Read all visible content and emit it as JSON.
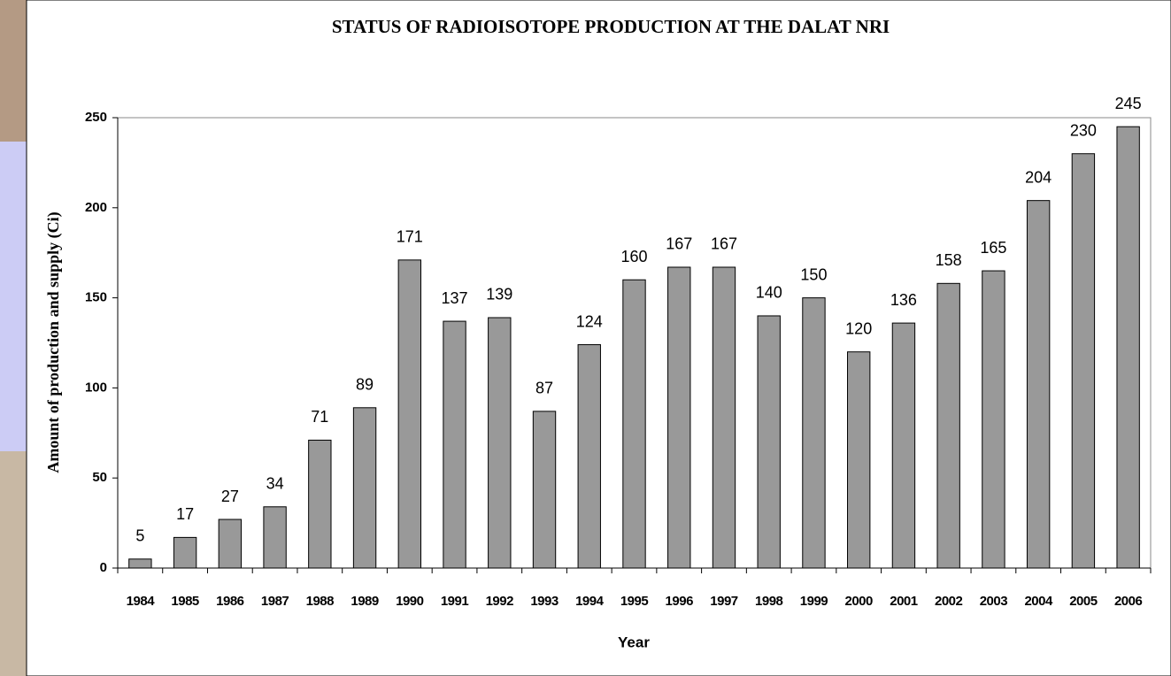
{
  "chart_data": {
    "type": "bar",
    "title": "STATUS OF RADIOISOTOPE PRODUCTION AT THE DALAT NRI",
    "x_label": "Year",
    "y_label": "Amount of production and supply (Ci)",
    "categories": [
      "1984",
      "1985",
      "1986",
      "1987",
      "1988",
      "1989",
      "1990",
      "1991",
      "1992",
      "1993",
      "1994",
      "1995",
      "1996",
      "1997",
      "1998",
      "1999",
      "2000",
      "2001",
      "2002",
      "2003",
      "2004",
      "2005",
      "2006"
    ],
    "values": [
      5,
      17,
      27,
      34,
      71,
      89,
      171,
      137,
      139,
      87,
      124,
      160,
      167,
      167,
      140,
      150,
      120,
      136,
      158,
      165,
      204,
      230,
      245
    ],
    "color": "#999999",
    "ylim": [
      0,
      250
    ],
    "yticks": [
      0,
      50,
      100,
      150,
      200,
      250
    ]
  }
}
